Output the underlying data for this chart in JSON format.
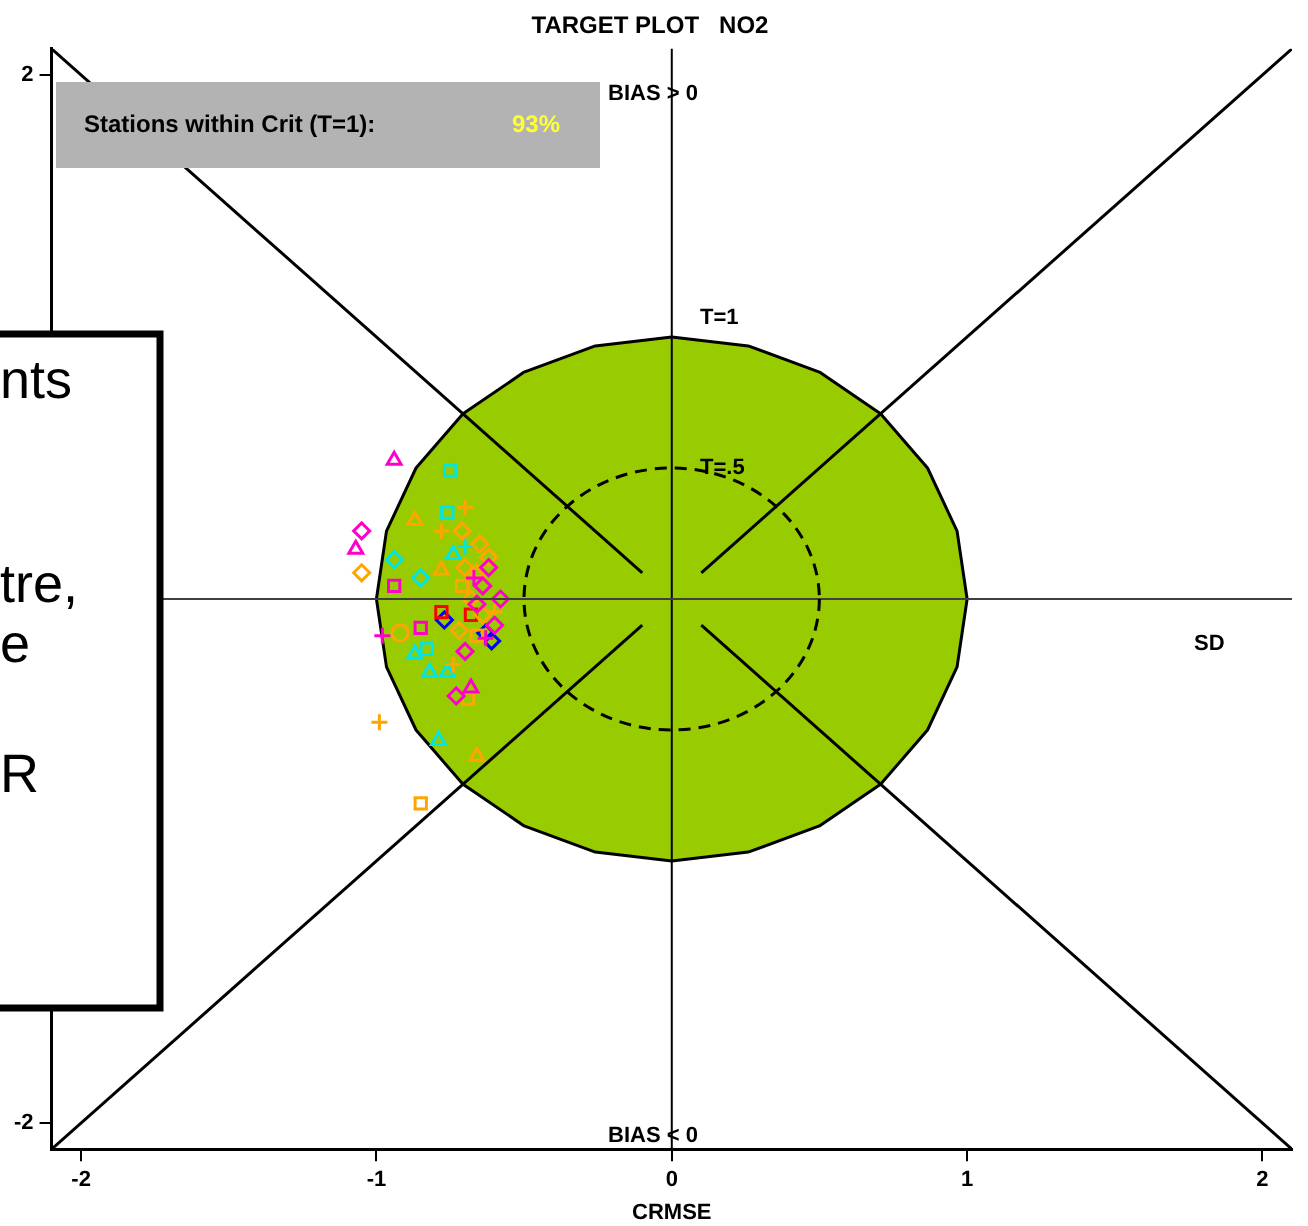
{
  "chart_data": {
    "type": "scatter",
    "title": "TARGET PLOT   NO2",
    "xlabel": "CRMSE",
    "xlim": [
      -2.1,
      2.1
    ],
    "ylim": [
      -2.1,
      2.1
    ],
    "xticks": [
      -2,
      -1,
      0,
      1,
      2
    ],
    "yticks": [
      -2,
      2
    ],
    "grid": false,
    "legend": false,
    "ref_lines": [
      {
        "axis": "x",
        "value": 0,
        "color": "#000000"
      },
      {
        "axis": "y",
        "value": 0,
        "color": "#404040"
      }
    ],
    "annotations": [
      "Stations within Crit (T=1):",
      "93%",
      "nts",
      "tre,",
      "e",
      "R",
      "T=1",
      "T=.5",
      "SD",
      "BIAS > 0",
      "BIAS < 0"
    ],
    "series": [
      {
        "color": "#ff00cc",
        "marker": "triangle",
        "x": [
          -0.94,
          -1.07,
          -0.68
        ],
        "values": [
          0.53,
          0.19,
          -0.34
        ]
      },
      {
        "color": "#ff00cc",
        "marker": "diamond",
        "x": [
          -1.05,
          -0.73,
          -0.62,
          -0.66,
          -0.6,
          -0.7,
          -0.64,
          -0.58
        ],
        "values": [
          0.26,
          -0.37,
          0.12,
          -0.02,
          -0.1,
          -0.2,
          0.05,
          0
        ]
      },
      {
        "color": "#ff00cc",
        "marker": "square",
        "x": [
          -0.94,
          -0.85
        ],
        "values": [
          0.05,
          -0.11
        ]
      },
      {
        "color": "#ff00cc",
        "marker": "cross",
        "x": [
          -0.98,
          -0.63,
          -0.67
        ],
        "values": [
          -0.14,
          -0.15,
          0.08
        ]
      },
      {
        "color": "#ffa500",
        "marker": "diamond",
        "x": [
          -0.71,
          -1.05,
          -0.65,
          -0.68,
          -0.64,
          -0.7,
          -0.62,
          -0.72
        ],
        "values": [
          0.26,
          0.1,
          0.21,
          0,
          -0.06,
          0.12,
          0.16,
          -0.12
        ]
      },
      {
        "color": "#ffa500",
        "marker": "triangle",
        "x": [
          -0.87,
          -0.78,
          -0.66,
          -0.66
        ],
        "values": [
          0.3,
          0.11,
          0.1,
          -0.6
        ]
      },
      {
        "color": "#ffa500",
        "marker": "cross",
        "x": [
          -0.7,
          -0.78,
          -0.74,
          -0.6,
          -0.99
        ],
        "values": [
          0.35,
          0.26,
          -0.25,
          -0.05,
          -0.47
        ]
      },
      {
        "color": "#ffa500",
        "marker": "square",
        "x": [
          -0.85,
          -0.69,
          -0.71,
          -0.66
        ],
        "values": [
          -0.78,
          -0.38,
          0.05,
          -0.14
        ]
      },
      {
        "color": "#ffa500",
        "marker": "circle",
        "x": [
          -0.92
        ],
        "values": [
          -0.13
        ]
      },
      {
        "color": "#00e5e5",
        "marker": "square",
        "x": [
          -0.75,
          -0.76,
          -0.83
        ],
        "values": [
          0.49,
          0.33,
          -0.19
        ]
      },
      {
        "color": "#00e5e5",
        "marker": "diamond",
        "x": [
          -0.94,
          -0.85
        ],
        "values": [
          0.15,
          0.08
        ]
      },
      {
        "color": "#00e5e5",
        "marker": "triangle",
        "x": [
          -0.87,
          -0.76,
          -0.74,
          -0.82,
          -0.79
        ],
        "values": [
          -0.21,
          -0.28,
          0.17,
          -0.28,
          -0.54
        ]
      },
      {
        "color": "#00e5e5",
        "marker": "cross",
        "x": [
          -0.7
        ],
        "values": [
          0.2
        ]
      },
      {
        "color": "#ff0000",
        "marker": "square",
        "x": [
          -0.78,
          -0.68
        ],
        "values": [
          -0.05,
          -0.06
        ]
      },
      {
        "color": "#0000ff",
        "marker": "diamond",
        "x": [
          -0.77,
          -0.61,
          -0.63
        ],
        "values": [
          -0.08,
          -0.16,
          -0.13
        ]
      },
      {
        "type": "line",
        "color": "#000000",
        "marker": "none",
        "x": [
          -2.1,
          -0.1
        ],
        "values": [
          2.1,
          0.1
        ]
      },
      {
        "type": "line",
        "color": "#000000",
        "marker": "none",
        "x": [
          2.1,
          0.1
        ],
        "values": [
          2.1,
          0.1
        ]
      },
      {
        "type": "line",
        "color": "#000000",
        "marker": "none",
        "x": [
          -2.1,
          -0.1
        ],
        "values": [
          -2.1,
          -0.1
        ]
      },
      {
        "type": "line",
        "color": "#000000",
        "marker": "none",
        "x": [
          2.1,
          0.1
        ],
        "values": [
          -2.1,
          -0.1
        ]
      },
      {
        "type": "area",
        "color": "#99cc00",
        "marker": "none",
        "x": [
          -1,
          -0.966,
          -0.866,
          -0.707,
          -0.5,
          -0.259,
          0,
          0.259,
          0.5,
          0.707,
          0.866,
          0.966,
          1
        ],
        "values": [
          0,
          0.259,
          0.5,
          0.707,
          0.866,
          0.966,
          1,
          0.966,
          0.866,
          0.707,
          0.5,
          0.259,
          0
        ]
      },
      {
        "type": "area",
        "color": "#99cc00",
        "marker": "none",
        "x": [
          -1,
          -0.966,
          -0.866,
          -0.707,
          -0.5,
          -0.259,
          0,
          0.259,
          0.5,
          0.707,
          0.866,
          0.966,
          1
        ],
        "values": [
          0,
          -0.259,
          -0.5,
          -0.707,
          -0.866,
          -0.966,
          -1,
          -0.966,
          -0.866,
          -0.707,
          -0.5,
          -0.259,
          0
        ]
      }
    ]
  }
}
